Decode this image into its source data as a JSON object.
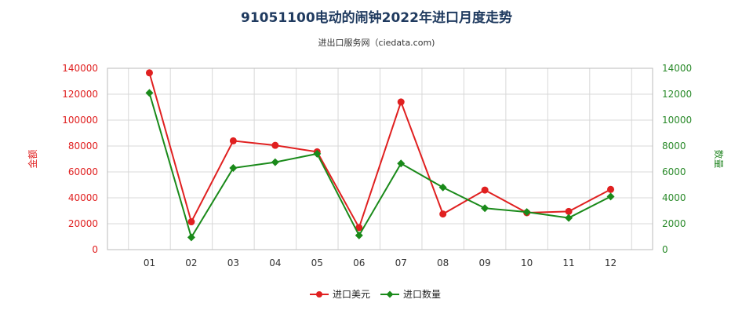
{
  "title": "91051100电动的闹钟2022年进口月度走势",
  "subtitle": "进出口服务网（ciedata.com)",
  "chart_data": {
    "type": "line",
    "categories": [
      "01",
      "02",
      "03",
      "04",
      "05",
      "06",
      "07",
      "08",
      "09",
      "10",
      "11",
      "12"
    ],
    "series": [
      {
        "name": "进口美元",
        "axis": "left",
        "color": "#e02020",
        "values": [
          136500,
          21500,
          84000,
          80500,
          75500,
          17000,
          114000,
          27500,
          46000,
          28500,
          29500,
          46500
        ]
      },
      {
        "name": "进口数量",
        "axis": "right",
        "color": "#1a8a1a",
        "values": [
          12100,
          950,
          6300,
          6750,
          7400,
          1100,
          6650,
          4800,
          3200,
          2900,
          2450,
          4100
        ]
      }
    ],
    "left_axis": {
      "label": "金额",
      "min": 0,
      "max": 140000,
      "ticks": [
        "0",
        "20000",
        "40000",
        "60000",
        "80000",
        "100000",
        "120000",
        "140000"
      ]
    },
    "right_axis": {
      "label": "数量",
      "min": 0,
      "max": 14000,
      "ticks": [
        "0",
        "2000",
        "4000",
        "6000",
        "8000",
        "10000",
        "12000",
        "14000"
      ]
    },
    "grid": true,
    "legend_position": "bottom-center"
  }
}
